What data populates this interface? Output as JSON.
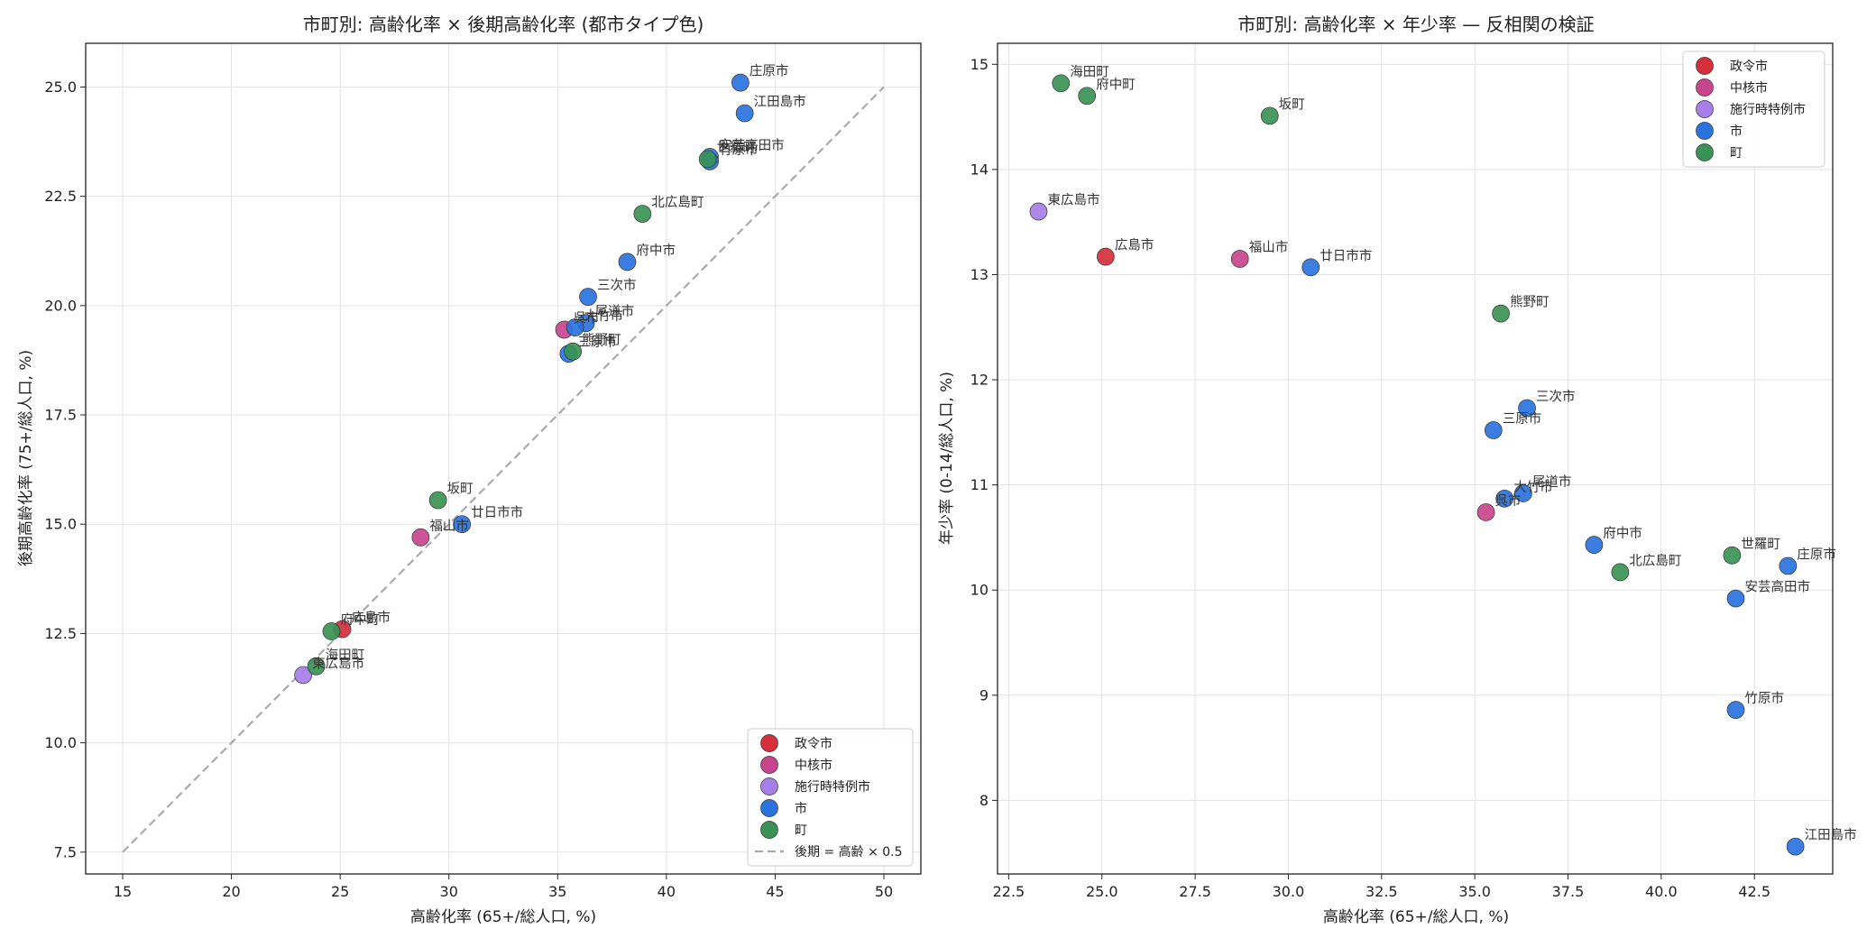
{
  "chart_data": [
    {
      "type": "scatter",
      "title": "市町別: 高齢化率 × 後期高齢化率 (都市タイプ色)",
      "xlabel": "高齢化率 (65+/総人口, %)",
      "ylabel": "後期高齢化率 (75+/総人口, %)",
      "xlim": [
        13.3,
        51.7
      ],
      "ylim": [
        7.0,
        26.0
      ],
      "xticks": [
        15,
        20,
        25,
        30,
        35,
        40,
        45,
        50
      ],
      "xtick_labels": [
        "15",
        "20",
        "25",
        "30",
        "35",
        "40",
        "45",
        "50"
      ],
      "yticks": [
        7.5,
        10.0,
        12.5,
        15.0,
        17.5,
        20.0,
        22.5,
        25.0
      ],
      "ytick_labels": [
        "7.5",
        "10.0",
        "12.5",
        "15.0",
        "17.5",
        "20.0",
        "22.5",
        "25.0"
      ],
      "grid": true,
      "legend_position": "lower-right",
      "reference_line": {
        "label": "後期 = 高齢 × 0.5",
        "x": [
          15,
          50
        ],
        "y": [
          7.5,
          25.0
        ],
        "color": "#aaaaaa"
      },
      "series": [
        {
          "name": "政令市",
          "color": "#d62f3b",
          "points": [
            {
              "label": "広島市",
              "x": 25.1,
              "y": 12.6
            }
          ]
        },
        {
          "name": "中核市",
          "color": "#c8458e",
          "points": [
            {
              "label": "福山市",
              "x": 28.7,
              "y": 14.7
            },
            {
              "label": "呉市",
              "x": 35.3,
              "y": 19.45
            }
          ]
        },
        {
          "name": "施行時特例市",
          "color": "#a77de8",
          "points": [
            {
              "label": "東広島市",
              "x": 23.3,
              "y": 11.55
            }
          ]
        },
        {
          "name": "市",
          "color": "#2a73de",
          "points": [
            {
              "label": "廿日市市",
              "x": 30.6,
              "y": 15.0
            },
            {
              "label": "府中市",
              "x": 38.2,
              "y": 21.0
            },
            {
              "label": "三次市",
              "x": 36.4,
              "y": 20.2
            },
            {
              "label": "尾道市",
              "x": 36.3,
              "y": 19.6
            },
            {
              "label": "大竹市",
              "x": 35.8,
              "y": 19.5
            },
            {
              "label": "三原市",
              "x": 35.5,
              "y": 18.9
            },
            {
              "label": "庄原市",
              "x": 43.4,
              "y": 25.1
            },
            {
              "label": "江田島市",
              "x": 43.6,
              "y": 24.4
            },
            {
              "label": "安芸高田市",
              "x": 42.0,
              "y": 23.4
            },
            {
              "label": "竹原市",
              "x": 42.0,
              "y": 23.3
            }
          ]
        },
        {
          "name": "町",
          "color": "#3a9255",
          "points": [
            {
              "label": "坂町",
              "x": 29.5,
              "y": 15.55
            },
            {
              "label": "府中町",
              "x": 24.6,
              "y": 12.55
            },
            {
              "label": "海田町",
              "x": 23.9,
              "y": 11.75
            },
            {
              "label": "北広島町",
              "x": 38.9,
              "y": 22.1
            },
            {
              "label": "熊野町",
              "x": 35.7,
              "y": 18.95
            },
            {
              "label": "世羅町",
              "x": 41.9,
              "y": 23.35
            }
          ]
        }
      ]
    },
    {
      "type": "scatter",
      "title": "市町別: 高齢化率 × 年少率 — 反相関の検証",
      "xlabel": "高齢化率 (65+/総人口, %)",
      "ylabel": "年少率 (0-14/総人口, %)",
      "xlim": [
        22.2,
        44.6
      ],
      "ylim": [
        7.3,
        15.2
      ],
      "xticks": [
        22.5,
        25.0,
        27.5,
        30.0,
        32.5,
        35.0,
        37.5,
        40.0,
        42.5
      ],
      "xtick_labels": [
        "22.5",
        "25.0",
        "27.5",
        "30.0",
        "32.5",
        "35.0",
        "37.5",
        "40.0",
        "42.5"
      ],
      "yticks": [
        8,
        9,
        10,
        11,
        12,
        13,
        14,
        15
      ],
      "ytick_labels": [
        "8",
        "9",
        "10",
        "11",
        "12",
        "13",
        "14",
        "15"
      ],
      "grid": true,
      "legend_position": "upper-right",
      "series": [
        {
          "name": "政令市",
          "color": "#d62f3b",
          "points": [
            {
              "label": "広島市",
              "x": 25.1,
              "y": 13.17
            }
          ]
        },
        {
          "name": "中核市",
          "color": "#c8458e",
          "points": [
            {
              "label": "福山市",
              "x": 28.7,
              "y": 13.15
            },
            {
              "label": "呉市",
              "x": 35.3,
              "y": 10.74
            }
          ]
        },
        {
          "name": "施行時特例市",
          "color": "#a77de8",
          "points": [
            {
              "label": "東広島市",
              "x": 23.3,
              "y": 13.6
            }
          ]
        },
        {
          "name": "市",
          "color": "#2a73de",
          "points": [
            {
              "label": "廿日市市",
              "x": 30.6,
              "y": 13.07
            },
            {
              "label": "三次市",
              "x": 36.4,
              "y": 11.73
            },
            {
              "label": "三原市",
              "x": 35.5,
              "y": 11.52
            },
            {
              "label": "尾道市",
              "x": 36.3,
              "y": 10.92
            },
            {
              "label": "大竹市",
              "x": 35.8,
              "y": 10.87
            },
            {
              "label": "府中市",
              "x": 38.2,
              "y": 10.43
            },
            {
              "label": "庄原市",
              "x": 43.4,
              "y": 10.23
            },
            {
              "label": "安芸高田市",
              "x": 42.0,
              "y": 9.92
            },
            {
              "label": "竹原市",
              "x": 42.0,
              "y": 8.86
            },
            {
              "label": "江田島市",
              "x": 43.6,
              "y": 7.56
            }
          ]
        },
        {
          "name": "町",
          "color": "#3a9255",
          "points": [
            {
              "label": "海田町",
              "x": 23.9,
              "y": 14.82
            },
            {
              "label": "府中町",
              "x": 24.6,
              "y": 14.7
            },
            {
              "label": "坂町",
              "x": 29.5,
              "y": 14.51
            },
            {
              "label": "熊野町",
              "x": 35.7,
              "y": 12.63
            },
            {
              "label": "世羅町",
              "x": 41.9,
              "y": 10.33
            },
            {
              "label": "北広島町",
              "x": 38.9,
              "y": 10.17
            }
          ]
        }
      ]
    }
  ]
}
